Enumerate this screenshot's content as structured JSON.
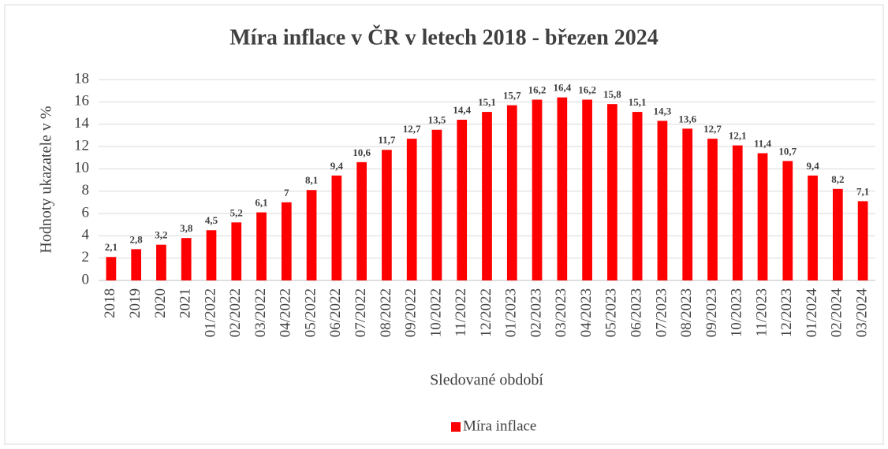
{
  "chart_data": {
    "type": "bar",
    "title": "Míra inflace v ČR v letech 2018 - březen 2024",
    "x_label": "Sledované období",
    "y_label": "Hodnoty ukazatele v %",
    "categories": [
      "2018",
      "2019",
      "2020",
      "2021",
      "01/2022",
      "02/2022",
      "03/2022",
      "04/2022",
      "05/2022",
      "06/2022",
      "07/2022",
      "08/2022",
      "09/2022",
      "10/2022",
      "11/2022",
      "12/2022",
      "01/2023",
      "02/2023",
      "03/2023",
      "04/2023",
      "05/2023",
      "06/2023",
      "07/2023",
      "08/2023",
      "09/2023",
      "10/2023",
      "11/2023",
      "12/2023",
      "01/2024",
      "02/2024",
      "03/2024"
    ],
    "series": [
      {
        "name": "Míra inflace",
        "color": "#ff0000",
        "values": [
          2.1,
          2.8,
          3.2,
          3.8,
          4.5,
          5.2,
          6.1,
          7,
          8.1,
          9.4,
          10.6,
          11.7,
          12.7,
          13.5,
          14.4,
          15.1,
          15.7,
          16.2,
          16.4,
          16.2,
          15.8,
          15.1,
          14.3,
          13.6,
          12.7,
          12.1,
          11.4,
          10.7,
          9.4,
          8.2,
          7.1
        ],
        "value_labels": [
          "2,1",
          "2,8",
          "3,2",
          "3,8",
          "4,5",
          "5,2",
          "6,1",
          "7",
          "8,1",
          "9,4",
          "10,6",
          "11,7",
          "12,7",
          "13,5",
          "14,4",
          "15,1",
          "15,7",
          "16,2",
          "16,4",
          "16,2",
          "15,8",
          "15,1",
          "14,3",
          "13,6",
          "12,7",
          "12,1",
          "11,4",
          "10,7",
          "9,4",
          "8,2",
          "7,1"
        ]
      }
    ],
    "ylim": [
      0,
      18
    ],
    "yticks": [
      0,
      2,
      4,
      6,
      8,
      10,
      12,
      14,
      16,
      18
    ],
    "grid": true,
    "legend": "bottom"
  }
}
